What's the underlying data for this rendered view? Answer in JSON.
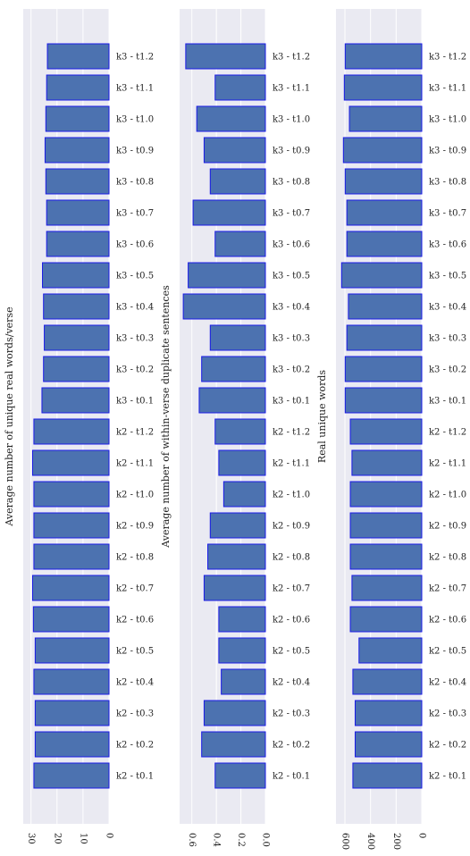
{
  "colors": {
    "plot_bg": "#EAEAF2",
    "grid": "#FFFFFF",
    "bar_fill": "#4C72B0",
    "bar_edge": "#1A1AE6",
    "text": "#222222"
  },
  "categories": [
    "k2 - t0.1",
    "k2 - t0.2",
    "k2 - t0.3",
    "k2 - t0.4",
    "k2 - t0.5",
    "k2 - t0.6",
    "k2 - t0.7",
    "k2 - t0.8",
    "k2 - t0.9",
    "k2 - t1.0",
    "k2 - t1.1",
    "k2 - t1.2",
    "k3 - t0.1",
    "k3 - t0.2",
    "k3 - t0.3",
    "k3 - t0.4",
    "k3 - t0.5",
    "k3 - t0.6",
    "k3 - t0.7",
    "k3 - t0.8",
    "k3 - t0.9",
    "k3 - t1.0",
    "k3 - t1.1",
    "k3 - t1.2"
  ],
  "chart_data": [
    {
      "type": "bar",
      "orientation": "horizontal",
      "title": "",
      "ylabel": "Average number of unique real words/verse",
      "xlim": [
        0,
        33
      ],
      "ticks": [
        0,
        10,
        20,
        30
      ],
      "tick_labels": [
        "0",
        "10",
        "20",
        "30"
      ],
      "grid": true,
      "values": [
        28.9,
        28.4,
        28.4,
        28.9,
        28.4,
        29.1,
        29.4,
        28.9,
        28.9,
        28.9,
        29.4,
        28.9,
        25.8,
        25.2,
        24.9,
        25.2,
        25.6,
        24.0,
        24.0,
        24.3,
        24.6,
        24.3,
        24.0,
        23.7
      ]
    },
    {
      "type": "bar",
      "orientation": "horizontal",
      "title": "",
      "ylabel": "Average number of within-verse duplicate sentences",
      "xlim": [
        0,
        0.7
      ],
      "ticks": [
        0,
        0.2,
        0.4,
        0.6
      ],
      "tick_labels": [
        "0.0",
        "0.2",
        "0.4",
        "0.6"
      ],
      "grid": true,
      "values": [
        0.41,
        0.52,
        0.5,
        0.36,
        0.38,
        0.38,
        0.5,
        0.47,
        0.45,
        0.34,
        0.38,
        0.41,
        0.54,
        0.52,
        0.45,
        0.67,
        0.63,
        0.41,
        0.59,
        0.45,
        0.5,
        0.56,
        0.41,
        0.65
      ]
    },
    {
      "type": "bar",
      "orientation": "horizontal",
      "title": "",
      "ylabel": "Real unique words",
      "xlim": [
        0,
        670
      ],
      "ticks": [
        0,
        200,
        400,
        600
      ],
      "tick_labels": [
        "0",
        "200",
        "400",
        "600"
      ],
      "grid": true,
      "values": [
        538,
        520,
        520,
        538,
        490,
        558,
        545,
        558,
        558,
        558,
        545,
        558,
        598,
        598,
        585,
        573,
        626,
        585,
        585,
        598,
        612,
        565,
        605,
        598
      ]
    }
  ]
}
